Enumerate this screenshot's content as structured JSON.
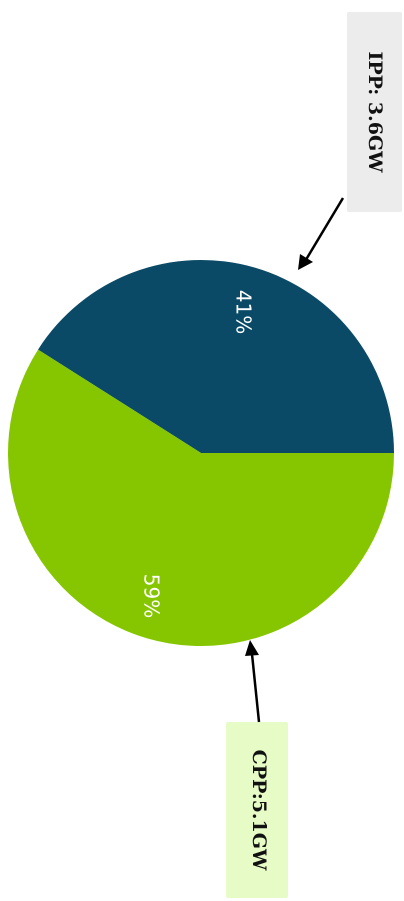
{
  "chart_data": {
    "type": "pie",
    "title": "",
    "slices": [
      {
        "label": "IPP",
        "value": 41,
        "value_label": "41%",
        "color": "#0a4a66"
      },
      {
        "label": "CPP",
        "value": 59,
        "value_label": "59%",
        "color": "#85c600"
      }
    ],
    "callouts": [
      {
        "text": "IPP: 3.6GW",
        "slice": "IPP",
        "box_color": "#ececec"
      },
      {
        "text": "CPP:5.1GW",
        "slice": "CPP",
        "box_color": "#e6fbc6"
      }
    ],
    "legend": "none",
    "orientation": "rotated-90-clockwise"
  }
}
